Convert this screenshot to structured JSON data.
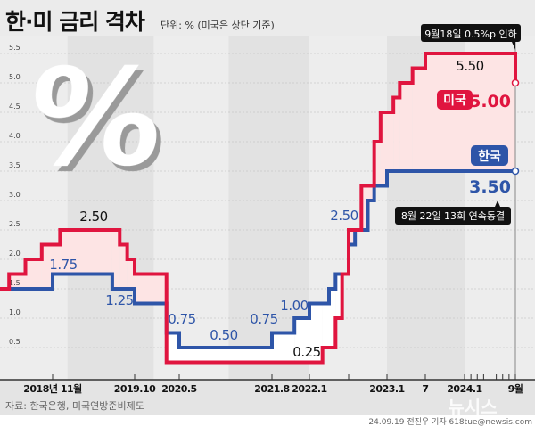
{
  "header": {
    "title": "한·미 금리 격차",
    "unit_note": "단위: % (미국은 상단 기준)"
  },
  "decoration": {
    "percent_mark": "%",
    "watermark": "뉴시스"
  },
  "colors": {
    "us": "#e0153f",
    "korea": "#2e55a8",
    "gap_fill": "#fde4e4",
    "band_dark": "#e2e2e2",
    "band_light": "#ededed",
    "callout": "#111111"
  },
  "annotations": {
    "us_cut": "9월18일 0.5%p 인하",
    "korea_hold": "8월 22일 13회 연속동결",
    "us_badge": "미국",
    "korea_badge": "한국",
    "us_current": "5.00",
    "korea_current": "3.50",
    "us_peak": "5.50",
    "us_2018_peak": "2.50",
    "kr_1_75": "1.75",
    "kr_1_25": "1.25",
    "kr_0_75a": "0.75",
    "kr_0_50": "0.50",
    "kr_0_75b": "0.75",
    "kr_1_00": "1.00",
    "us_0_25": "0.25",
    "kr_2_50": "2.50"
  },
  "footer": {
    "source": "자료: 한국은행, 미국연방준비제도",
    "credit": "24.09.19 전진우 기자 618tue@newsis.com"
  },
  "chart_data": {
    "type": "line",
    "step": true,
    "title": "한·미 금리 격차",
    "subtitle": "단위: % (미국은 상단 기준)",
    "ylim": [
      0,
      5.5
    ],
    "yticks": [
      "0.5",
      "1.0",
      "1.5",
      "2.0",
      "2.5",
      "3.0",
      "3.5",
      "4.0",
      "4.5",
      "5.0",
      "5.5"
    ],
    "xticks": [
      {
        "date": "2018-11",
        "label": "2018년 11월"
      },
      {
        "date": "2019-10",
        "label": "2019.10"
      },
      {
        "date": "2020-05",
        "label": "2020.5"
      },
      {
        "date": "2021-08",
        "label": "2021.8"
      },
      {
        "date": "2022-01",
        "label": "2022.1"
      },
      {
        "date": "2022-07",
        "label": ""
      },
      {
        "date": "2023-01",
        "label": "2023.1"
      },
      {
        "date": "2023-07",
        "label": "7"
      },
      {
        "date": "2024-01",
        "label": "2024.1"
      },
      {
        "date": "2024-02",
        "label": ""
      },
      {
        "date": "2024-03",
        "label": ""
      },
      {
        "date": "2024-04",
        "label": ""
      },
      {
        "date": "2024-05",
        "label": ""
      },
      {
        "date": "2024-06",
        "label": ""
      },
      {
        "date": "2024-07",
        "label": ""
      },
      {
        "date": "2024-08",
        "label": ""
      },
      {
        "date": "2024-09",
        "label": "9월"
      }
    ],
    "grid": true,
    "series": [
      {
        "name": "미국",
        "color": "#e0153f",
        "points": [
          [
            "2018-01",
            1.5
          ],
          [
            "2018-03",
            1.75
          ],
          [
            "2018-06",
            2.0
          ],
          [
            "2018-09",
            2.25
          ],
          [
            "2018-12",
            2.5
          ],
          [
            "2019-08",
            2.25
          ],
          [
            "2019-09",
            2.0
          ],
          [
            "2019-10",
            1.75
          ],
          [
            "2020-03",
            0.25
          ],
          [
            "2022-03",
            0.5
          ],
          [
            "2022-05",
            1.0
          ],
          [
            "2022-06",
            1.75
          ],
          [
            "2022-07",
            2.5
          ],
          [
            "2022-09",
            3.25
          ],
          [
            "2022-11",
            4.0
          ],
          [
            "2022-12",
            4.5
          ],
          [
            "2023-02",
            4.75
          ],
          [
            "2023-03",
            5.0
          ],
          [
            "2023-05",
            5.25
          ],
          [
            "2023-07",
            5.5
          ],
          [
            "2024-09",
            5.0
          ]
        ]
      },
      {
        "name": "한국",
        "color": "#2e55a8",
        "points": [
          [
            "2018-01",
            1.5
          ],
          [
            "2018-11",
            1.75
          ],
          [
            "2019-07",
            1.5
          ],
          [
            "2019-10",
            1.25
          ],
          [
            "2020-03",
            0.75
          ],
          [
            "2020-05",
            0.5
          ],
          [
            "2021-08",
            0.75
          ],
          [
            "2021-11",
            1.0
          ],
          [
            "2022-01",
            1.25
          ],
          [
            "2022-04",
            1.5
          ],
          [
            "2022-05",
            1.75
          ],
          [
            "2022-07",
            2.25
          ],
          [
            "2022-08",
            2.5
          ],
          [
            "2022-10",
            3.0
          ],
          [
            "2022-11",
            3.25
          ],
          [
            "2023-01",
            3.5
          ],
          [
            "2024-09",
            3.5
          ]
        ]
      }
    ]
  }
}
